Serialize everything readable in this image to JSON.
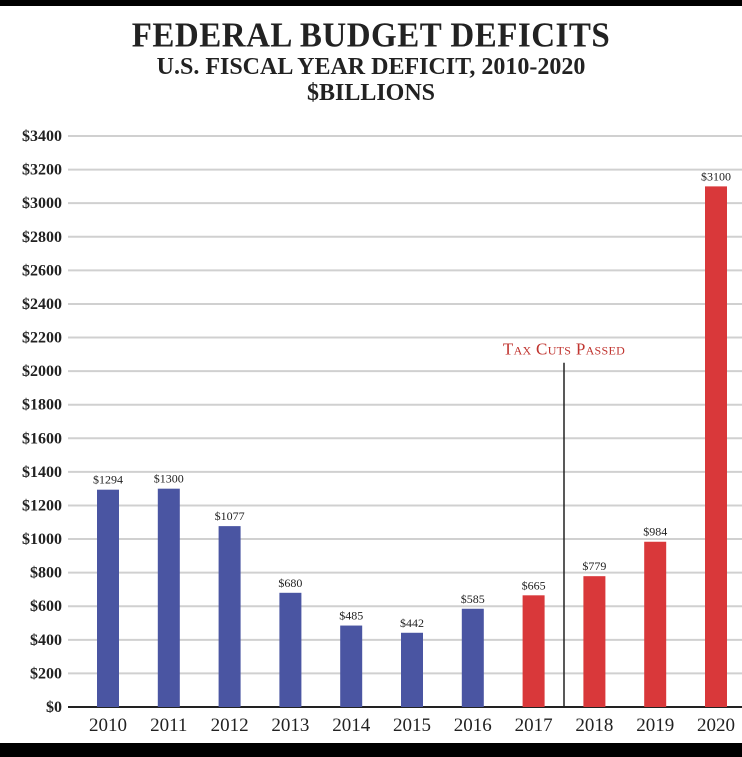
{
  "chart_data": {
    "type": "bar",
    "title": "FEDERAL BUDGET DEFICITS",
    "subtitle": "U.S. FISCAL YEAR DEFICIT, 2010-2020",
    "unit_line": "$BILLIONS",
    "xlabel": "",
    "ylabel": "",
    "categories": [
      "2010",
      "2011",
      "2012",
      "2013",
      "2014",
      "2015",
      "2016",
      "2017",
      "2018",
      "2019",
      "2020"
    ],
    "values": [
      1294,
      1300,
      1077,
      680,
      485,
      442,
      585,
      665,
      779,
      984,
      3100
    ],
    "data_labels": [
      "$1294",
      "$1300",
      "$1077",
      "$680",
      "$485",
      "$442",
      "$585",
      "$665",
      "$779",
      "$984",
      "$3100"
    ],
    "ylim": [
      0,
      3400
    ],
    "yticks": [
      0,
      200,
      400,
      600,
      800,
      1000,
      1200,
      1400,
      1600,
      1800,
      2000,
      2200,
      2400,
      2600,
      2800,
      3000,
      3200,
      3400
    ],
    "ytick_labels": [
      "$0",
      "$200",
      "$400",
      "$600",
      "$800",
      "$1000",
      "$1200",
      "$1400",
      "$1600",
      "$1800",
      "$2000",
      "$2200",
      "$2400",
      "$2600",
      "$2800",
      "$3000",
      "$3200",
      "$3400"
    ],
    "grid": true,
    "colors": {
      "before": "#4a55a2",
      "after": "#d9383a",
      "annotation": "#c0342f",
      "grid": "#d0d0d0"
    },
    "bar_colors": [
      "#4a55a2",
      "#4a55a2",
      "#4a55a2",
      "#4a55a2",
      "#4a55a2",
      "#4a55a2",
      "#4a55a2",
      "#d9383a",
      "#d9383a",
      "#d9383a",
      "#d9383a"
    ],
    "annotation": {
      "text": "Tax Cuts Passed",
      "between": [
        "2017",
        "2018"
      ]
    }
  }
}
